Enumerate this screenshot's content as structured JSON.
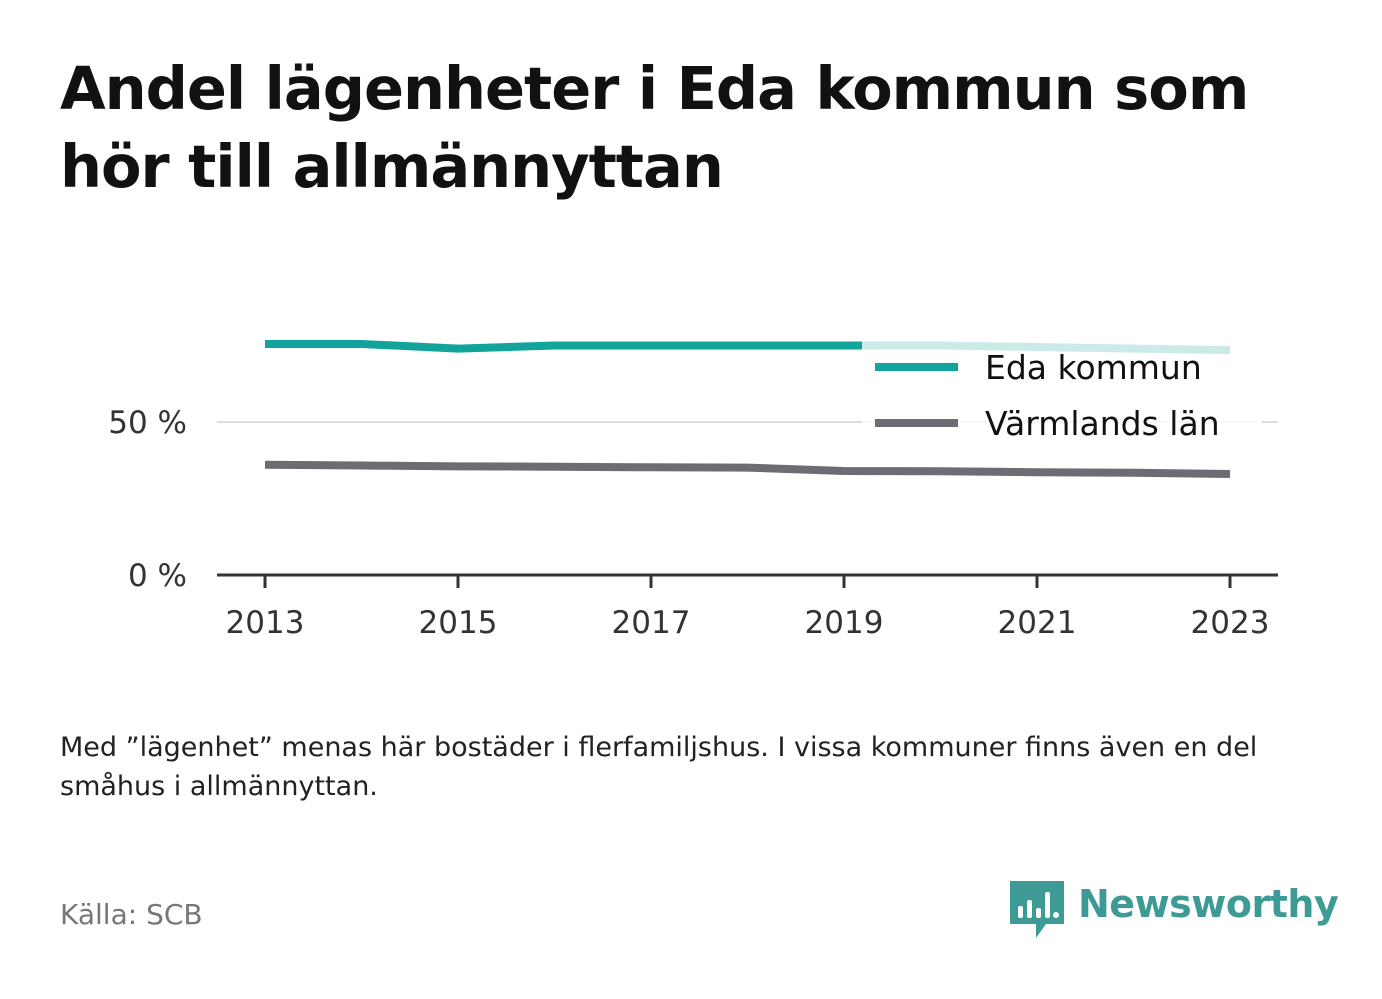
{
  "title": "Andel lägenheter i Eda kommun som hör till allmännyttan",
  "note": "Med ”lägenhet” menas här bostäder i flerfamiljshus. I vissa kommuner finns även en del småhus i allmännyttan.",
  "source": "Källa: SCB",
  "brand": {
    "name": "Newsworthy",
    "color": "#3d9a94",
    "icon": "bar-chart-speech-bubble-icon"
  },
  "chart_data": {
    "type": "line",
    "x": [
      2013,
      2014,
      2015,
      2016,
      2017,
      2018,
      2019,
      2020,
      2021,
      2022,
      2023
    ],
    "x_ticks": [
      "2013",
      "2015",
      "2017",
      "2019",
      "2021",
      "2023"
    ],
    "y_ticks": [
      "0 %",
      "50 %"
    ],
    "ylim": [
      0,
      85
    ],
    "series": [
      {
        "name": "Eda kommun",
        "color": "#12a39b",
        "values": [
          75.5,
          75.5,
          74.0,
          75.0,
          75.0,
          75.0,
          75.0,
          75.0,
          74.5,
          74.0,
          73.5
        ]
      },
      {
        "name": "Värmlands län",
        "color": "#6d6c72",
        "values": [
          36.0,
          35.8,
          35.5,
          35.4,
          35.2,
          35.1,
          34.0,
          33.9,
          33.6,
          33.4,
          33.0
        ]
      }
    ],
    "grid": true,
    "legend_position": "top-right"
  }
}
